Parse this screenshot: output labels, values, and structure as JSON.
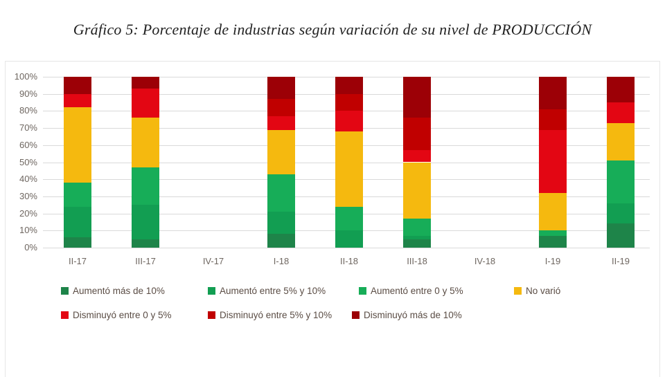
{
  "chart_data": {
    "type": "bar",
    "stacked": true,
    "title": "Gráfico 5: Porcentaje de industrias según variación de su nivel de PRODUCCIÓN",
    "categories": [
      "II-17",
      "III-17",
      "IV-17",
      "I-18",
      "II-18",
      "III-18",
      "IV-18",
      "I-19",
      "II-19"
    ],
    "series": [
      {
        "name": "Aumentó más de 10%",
        "color": "#1e8449",
        "values": [
          6,
          5,
          0,
          8,
          0,
          5,
          0,
          7,
          14
        ]
      },
      {
        "name": "Aumentó entre 5% y 10%",
        "color": "#129e52",
        "values": [
          18,
          20,
          0,
          13,
          10,
          2,
          0,
          0,
          12
        ]
      },
      {
        "name": "Aumentó entre 0 y 5%",
        "color": "#17ad58",
        "values": [
          14,
          22,
          0,
          22,
          14,
          10,
          0,
          3,
          25
        ]
      },
      {
        "name": "No varió",
        "color": "#f5b90f",
        "values": [
          44,
          29,
          0,
          26,
          44,
          33,
          0,
          22,
          22
        ]
      },
      {
        "name": "Disminuyó entre 0 y 5%",
        "color": "#e30613",
        "values": [
          8,
          17,
          0,
          8,
          12,
          7,
          0,
          37,
          12
        ]
      },
      {
        "name": "Disminuyó entre 5% y 10%",
        "color": "#c00000",
        "values": [
          0,
          0,
          0,
          10,
          10,
          19,
          0,
          12,
          0
        ]
      },
      {
        "name": "Disminuyó más de 10%",
        "color": "#9c0006",
        "values": [
          10,
          7,
          0,
          13,
          10,
          24,
          0,
          19,
          15
        ]
      }
    ],
    "y_ticks": [
      "0%",
      "10%",
      "20%",
      "30%",
      "40%",
      "50%",
      "60%",
      "70%",
      "80%",
      "90%",
      "100%"
    ],
    "ylim": [
      0,
      100
    ],
    "grid": true,
    "legend_position": "bottom",
    "legend_rows": [
      [
        0,
        1,
        2,
        3
      ],
      [
        4,
        5,
        6
      ]
    ]
  }
}
